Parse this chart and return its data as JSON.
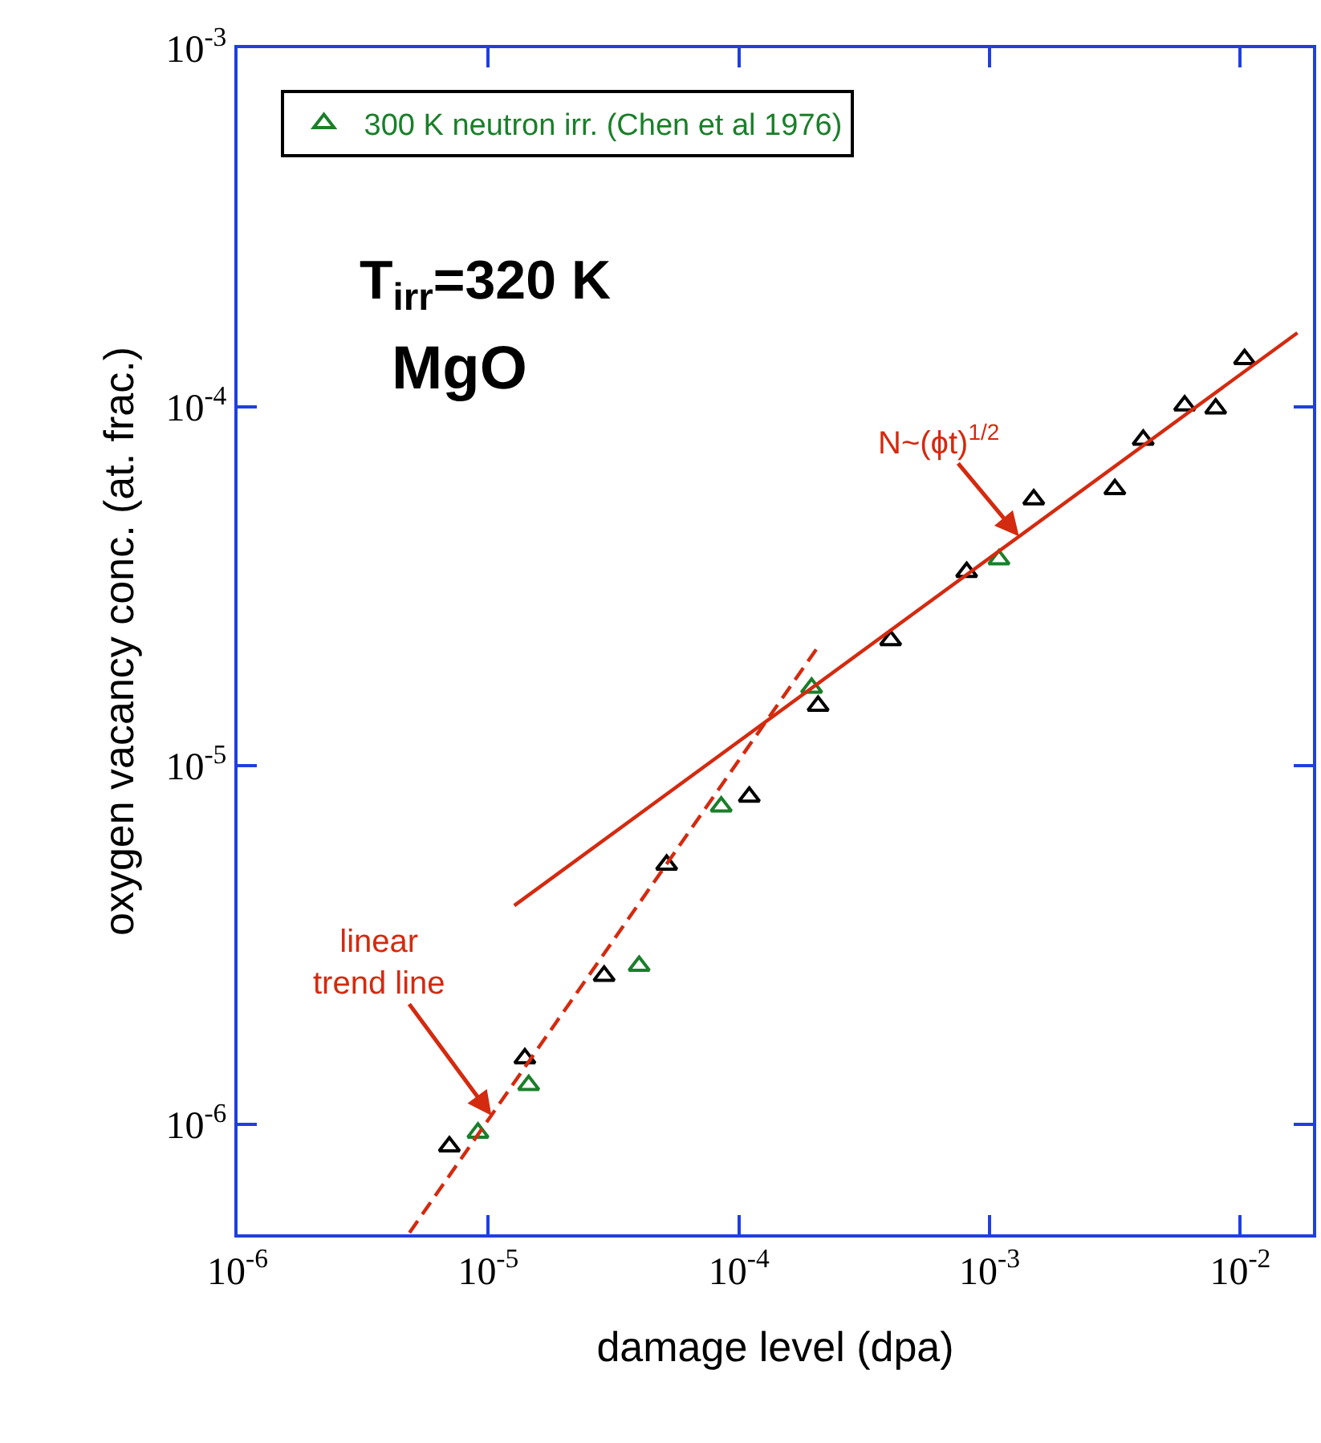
{
  "chart_data": {
    "type": "scatter",
    "xlabel": "damage level (dpa)",
    "ylabel": "oxygen vacancy conc. (at. frac.)",
    "log": "xy",
    "legend": "top left",
    "marker": "triangle",
    "xlim": [
      1e-06,
      0.0195
    ],
    "ylim": [
      4.95e-07,
      0.001
    ],
    "xticks": [
      {
        "value": 1e-06,
        "label": "10$^{-6}$"
      },
      {
        "value": 1e-05,
        "label": "10$^{-5}$"
      },
      {
        "value": 0.0001,
        "label": "10$^{-4}$"
      },
      {
        "value": 0.001,
        "label": "10$^{-3}$"
      },
      {
        "value": 0.01,
        "label": "10$^{-2}$"
      }
    ],
    "yticks": [
      {
        "value": 1e-06,
        "label": "10$^{-6}$"
      },
      {
        "value": 1e-05,
        "label": "10$^{-5}$"
      },
      {
        "value": 0.0001,
        "label": "10$^{-4}$"
      },
      {
        "value": 0.001,
        "label": "10$^{-3}$"
      }
    ],
    "series": [
      {
        "color": "#000000",
        "x": [
          7e-06,
          1.4e-05,
          2.9e-05,
          5.15e-05,
          0.00011,
          0.000207,
          0.000403,
          0.00081,
          0.0015,
          0.00316,
          0.0041,
          0.006,
          0.00798,
          0.0104
        ],
        "values": [
          8.7e-07,
          1.53e-06,
          2.6e-06,
          5.3e-06,
          8.2e-06,
          1.47e-05,
          2.24e-05,
          3.47e-05,
          5.53e-05,
          5.9e-05,
          8.1e-05,
          0.000101,
          9.9e-05,
          0.000136
        ]
      },
      {
        "name": "300 K neutron irr. (Chen et al 1976)",
        "color": "#1a7f2a",
        "x": [
          9.1e-06,
          1.45e-05,
          4e-05,
          8.5e-05,
          0.000195,
          0.00109
        ],
        "values": [
          9.5e-07,
          1.29e-06,
          2.77e-06,
          7.7e-06,
          1.65e-05,
          3.76e-05
        ]
      },
      {
        "type": "line",
        "color": "#d42a0f",
        "marker": "none",
        "line_style": "solid",
        "x": [
          1.27e-05,
          0.0169
        ],
        "values": [
          4.08e-06,
          0.000161
        ]
      },
      {
        "type": "line",
        "color": "#d42a0f",
        "marker": "none",
        "line_style": "dashed",
        "x": [
          4.85e-06,
          0.000211
        ],
        "values": [
          5e-07,
          2.19e-05
        ]
      }
    ],
    "annotations": [
      "T$_{irr}$=320 K",
      "MgO",
      {
        "text": "N~(ϕt)$^{1/2}$",
        "x": 0.00131,
        "y": 4.36e-05
      },
      {
        "text": "linear\ntrend line",
        "x": 1.03e-05,
        "y": 1.06e-06
      }
    ]
  }
}
